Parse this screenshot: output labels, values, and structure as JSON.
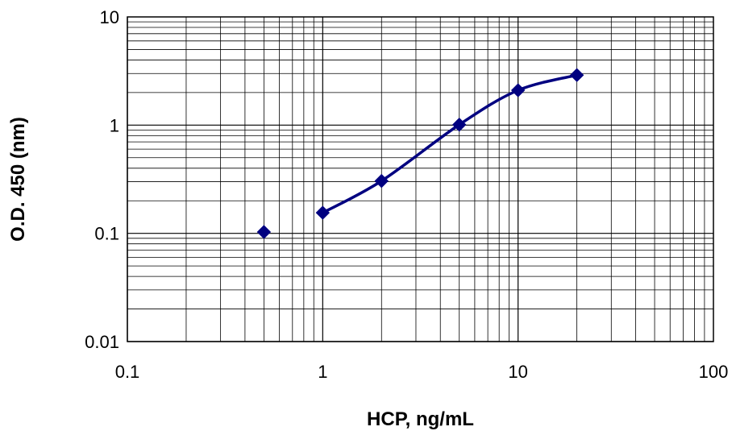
{
  "chart_data": {
    "type": "scatter",
    "xlabel": "HCP, ng/mL",
    "ylabel": "O.D. 450 (nm)",
    "x_scale": "log",
    "y_scale": "log",
    "xlim": [
      0.1,
      100
    ],
    "ylim": [
      0.01,
      10
    ],
    "x_ticks": [
      "0.1",
      "1",
      "10",
      "100"
    ],
    "y_ticks": [
      "0.01",
      "0.1",
      "1",
      "10"
    ],
    "grid": true,
    "legend": "none",
    "colors": {
      "series": "#000080",
      "grid": "#000000",
      "background": "#ffffff"
    },
    "series": [
      {
        "marker": "diamond",
        "points": [
          {
            "x": 0.5,
            "y": 0.103
          },
          {
            "x": 1,
            "y": 0.155
          },
          {
            "x": 2,
            "y": 0.305
          },
          {
            "x": 5,
            "y": 1.01
          },
          {
            "x": 10,
            "y": 2.1
          },
          {
            "x": 20,
            "y": 2.9
          }
        ],
        "fit_curve": {
          "from_x": 1,
          "to_x": 20,
          "style": "smooth"
        }
      }
    ]
  }
}
